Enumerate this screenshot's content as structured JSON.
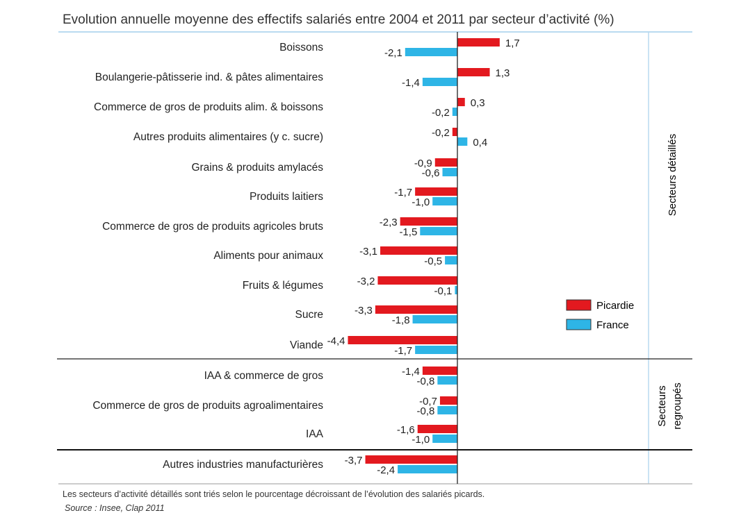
{
  "chart_data": {
    "type": "bar",
    "orientation": "horizontal",
    "title": "Evolution annuelle moyenne des effectifs salariés entre 2004 et 2011 par secteur d’activité (%)",
    "categories": [
      "Boissons",
      "Boulangerie-pâtisserie ind. & pâtes alimentaires",
      "Commerce de gros de produits alim. & boissons",
      "Autres produits alimentaires (y c. sucre)",
      "Grains & produits amylacés",
      "Produits laitiers",
      "Commerce de gros de produits agricoles bruts",
      "Aliments pour animaux",
      "Fruits & légumes",
      "Sucre",
      "Viande",
      "IAA & commerce de gros",
      "Commerce de gros de produits agroalimentaires",
      "IAA",
      "Autres industries manufacturières"
    ],
    "series": [
      {
        "name": "Picardie",
        "color": "#e3191f",
        "values": [
          1.7,
          1.3,
          0.3,
          -0.2,
          -0.9,
          -1.7,
          -2.3,
          -3.1,
          -3.2,
          -3.3,
          -4.4,
          -1.4,
          -0.7,
          -1.6,
          -3.7
        ]
      },
      {
        "name": "France",
        "color": "#2eb5e6",
        "values": [
          -2.1,
          -1.4,
          -0.2,
          0.4,
          -0.6,
          -1.0,
          -1.5,
          -0.5,
          -0.1,
          -1.8,
          -1.7,
          -0.8,
          -0.8,
          -1.0,
          -2.4
        ]
      }
    ],
    "groups": [
      {
        "label": "Secteurs détaillés",
        "categories": 11
      },
      {
        "label": "Secteurs regroupés",
        "categories": 3
      },
      {
        "label": "",
        "categories": 1
      }
    ],
    "legend": "right",
    "grid": false,
    "xlim": [
      -4.4,
      7.5
    ],
    "footnote": "Les secteurs  d’activité détaillés sont triés selon le pourcentage décroissant de l’évolution des salariés picards.",
    "source": "Source : Insee, Clap 2011"
  }
}
